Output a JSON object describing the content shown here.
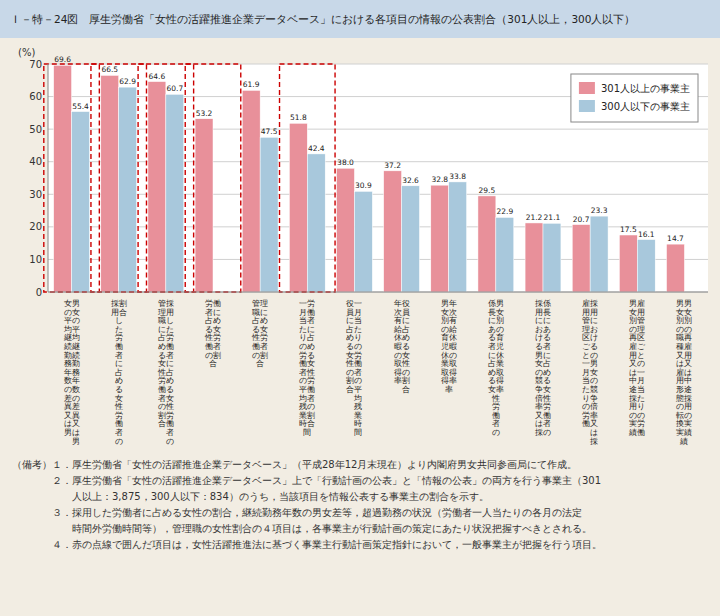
{
  "chart_data": {
    "type": "bar",
    "title": "Ｉ－特－24図　厚生労働省「女性の活躍推進企業データベース」における各項目の情報の公表割合（301人以上，300人以下）",
    "ylabel": "(%)",
    "categories": [
      "女男\nの女\n平の\n均平\n継均\n続継\n勤続\n務勤\n年務\n数年\nの数\n差の\n異差\n又異\nは又\n男は\n　男",
      "採割\n用合\nし\nた\n労\n働\n者\nに\n占\nめ\nる\n女\n性\n労\n働\n者\nの",
      "管採\n理用\n職し\nにた\n占労\nめ働\nる者\n女に\n性占\n労め\n働る\n者女\nの性\n割労\n合働\n　者\n　の",
      "労働\n者に\n占め\nる女\n性労\n働者\nの割\n合",
      "管理\n職に\n占め\nる女\n性労\n働者\nの割\n合",
      "一労\n月働\n当者\nたに\nり占\nのめ\n労る\n働女\n者性\nの労\n平働\n均者\n残の\n業割\n時合\n間",
      "役一\n員月\nに当\n占た\nめり\nるの\n女労\n性働\nの者\n割の\n合平\n　均\n　残\n　業\n　時\n　間",
      "年役\n次員\n有に\n給占\n休め\n暇る\nの女\n取性\n得の\n率割\n　合",
      "男年\n女次\n別有\nの給\n育休\n児暇\n休の\n業取\n取得\n得率\n率",
      "係男\n長女\nに別\nあの\nる育\n者児\nに休\n占業\nめ取\nる得\n女率\n性\n労\n働\n者\nの",
      "採係\n用長\nにに\nおあ\nける\nる者\n男に\n女占\nのめ\n競る\n争女\n倍性\n率労\n又働\nは者\n採の",
      "雇採\n用用\n管に\n理お\n区け\nごる\nとの\n一男\n月女\n当の\nた競\nり争\nの倍\n労率\n働又\n　は\n　採",
      "男雇\n女用\n別管\nの理\n再区\n雇ご\n用と\n又の\nは一\n中月\n途当\n採た\n用り\nのの\n実労\n績働",
      "男男\n女女\n別別\nのの\n職再\n種雇\n又用\nは又\n雇は\n用中\n形途\n態採\nの用\n転の\n換実\n実績\n績"
    ],
    "series": [
      {
        "name": "301人以上の事業主",
        "color": "#E8909A",
        "values": [
          69.6,
          66.5,
          64.6,
          53.2,
          61.9,
          51.8,
          38.0,
          37.2,
          32.8,
          29.5,
          21.2,
          20.7,
          17.5,
          14.7
        ],
        "value_labels": [
          "69.6",
          "66.5",
          "64.6",
          "53.2",
          "61.9",
          "51.8",
          "38.0",
          "37.2",
          "32.8",
          "29.5",
          "21.2",
          "20.7",
          "17.5",
          "14.7"
        ]
      },
      {
        "name": "300人以下の事業主",
        "color": "#A8C8DC",
        "values": [
          55.4,
          62.9,
          60.7,
          null,
          47.5,
          42.4,
          30.9,
          32.6,
          33.8,
          22.9,
          21.1,
          23.3,
          16.1,
          null
        ],
        "value_labels": [
          "55.4",
          "62.9",
          "60.7",
          null,
          "47.5",
          "42.4",
          "30.9",
          "32.6",
          "33.8",
          "22.9",
          "21.1",
          "23.3",
          "16.1",
          null
        ]
      }
    ],
    "ylim": [
      0,
      70
    ],
    "yticks": [
      0,
      10,
      20,
      30,
      40,
      50,
      60,
      70
    ],
    "grid": true,
    "legend": "upper right",
    "data_labels": true,
    "highlight": {
      "categories": [
        0,
        1,
        2,
        3,
        5
      ],
      "color": "#CC0000"
    },
    "annotations": [
      "（備考）１．厚生労働省「女性の活躍推進企業データベース」（平成28年12月末現在）より内閣府男女共同参画局にて作成。",
      "　　　　２．厚生労働省「女性の活躍推進企業データベース」上で「行動計画の公表」と「情報の公表」の両方を行う事業主（301",
      "　　　　　　人以上：3,875，300人以下：834）のうち，当該項目を情報公表する事業主の割合を示す。",
      "　　　　３．採用した労働者に占める女性の割合，継続勤務年数の男女差等，超過勤務の状況（労働者一人当たりの各月の法定",
      "　　　　　　時間外労働時間等），管理職の女性割合の４項目は，各事業主が行動計画の策定にあたり状況把握すべきとされる。",
      "　　　　４．赤の点線で囲んだ項目は，女性活躍推進法に基づく事業主行動計画策定指針において，一般事業主が把握を行う項目。"
    ]
  }
}
